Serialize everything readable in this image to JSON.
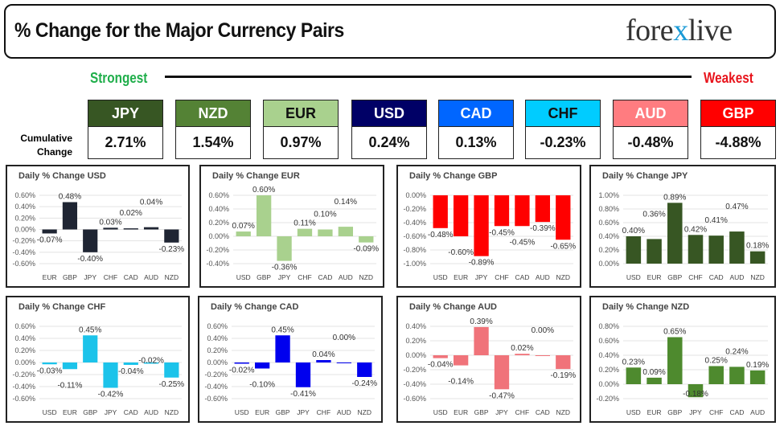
{
  "header": {
    "title": "% Change for the Major Currency Pairs",
    "logo_text": "forexlive"
  },
  "ranking": {
    "strongest_label": "Strongest",
    "weakest_label": "Weakest",
    "cumulative_label_1": "Cumulative",
    "cumulative_label_2": "Change",
    "items": [
      {
        "currency": "JPY",
        "value": "2.71%",
        "color": "#375623",
        "text_color": "#ffffff"
      },
      {
        "currency": "NZD",
        "value": "1.54%",
        "color": "#548235",
        "text_color": "#ffffff"
      },
      {
        "currency": "EUR",
        "value": "0.97%",
        "color": "#a9d18e",
        "text_color": "#111111"
      },
      {
        "currency": "USD",
        "value": "0.24%",
        "color": "#000066",
        "text_color": "#ffffff"
      },
      {
        "currency": "CAD",
        "value": "0.13%",
        "color": "#0066ff",
        "text_color": "#ffffff"
      },
      {
        "currency": "CHF",
        "value": "-0.23%",
        "color": "#00ccff",
        "text_color": "#111111"
      },
      {
        "currency": "AUD",
        "value": "-0.48%",
        "color": "#ff7c80",
        "text_color": "#ffffff"
      },
      {
        "currency": "GBP",
        "value": "-4.88%",
        "color": "#ff0000",
        "text_color": "#ffffff"
      }
    ]
  },
  "chart_data": [
    {
      "type": "bar",
      "title": "Daily % Change USD",
      "categories": [
        "EUR",
        "GBP",
        "JPY",
        "CHF",
        "CAD",
        "AUD",
        "NZD"
      ],
      "values": [
        -0.07,
        0.48,
        -0.4,
        0.03,
        0.02,
        0.04,
        -0.23
      ],
      "ylim": [
        -0.6,
        0.6
      ],
      "ystep": 0.2,
      "color": "#1f2533",
      "grid": true
    },
    {
      "type": "bar",
      "title": "Daily % Change EUR",
      "categories": [
        "USD",
        "GBP",
        "JPY",
        "CHF",
        "CAD",
        "AUD",
        "NZD"
      ],
      "values": [
        0.07,
        0.6,
        -0.36,
        0.11,
        0.1,
        0.14,
        -0.09
      ],
      "ylim": [
        -0.4,
        0.6
      ],
      "ystep": 0.2,
      "color": "#a9d18e",
      "grid": true
    },
    {
      "type": "bar",
      "title": "Daily % Change GBP",
      "categories": [
        "USD",
        "EUR",
        "JPY",
        "CHF",
        "CAD",
        "AUD",
        "NZD"
      ],
      "values": [
        -0.48,
        -0.6,
        -0.89,
        -0.45,
        -0.45,
        -0.39,
        -0.65
      ],
      "ylim": [
        -1.0,
        0.0
      ],
      "ystep": 0.2,
      "color": "#ff0000",
      "grid": true
    },
    {
      "type": "bar",
      "title": "Daily % Change JPY",
      "categories": [
        "USD",
        "EUR",
        "GBP",
        "CHF",
        "CAD",
        "AUD",
        "NZD"
      ],
      "values": [
        0.4,
        0.36,
        0.89,
        0.42,
        0.41,
        0.47,
        0.18
      ],
      "ylim": [
        0.0,
        1.0
      ],
      "ystep": 0.2,
      "color": "#375623",
      "grid": true
    },
    {
      "type": "bar",
      "title": "Daily % Change CHF",
      "categories": [
        "USD",
        "EUR",
        "GBP",
        "JPY",
        "CAD",
        "AUD",
        "NZD"
      ],
      "values": [
        -0.03,
        -0.11,
        0.45,
        -0.42,
        -0.04,
        -0.02,
        -0.25
      ],
      "ylim": [
        -0.6,
        0.6
      ],
      "ystep": 0.2,
      "color": "#1cc3ea",
      "grid": true
    },
    {
      "type": "bar",
      "title": "Daily % Change CAD",
      "categories": [
        "USD",
        "EUR",
        "GBP",
        "JPY",
        "CHF",
        "AUD",
        "NZD"
      ],
      "values": [
        -0.02,
        -0.1,
        0.45,
        -0.41,
        0.04,
        0.0,
        -0.24
      ],
      "ylim": [
        -0.6,
        0.6
      ],
      "ystep": 0.2,
      "color": "#0000ee",
      "grid": true
    },
    {
      "type": "bar",
      "title": "Daily % Change AUD",
      "categories": [
        "USD",
        "EUR",
        "GBP",
        "JPY",
        "CHF",
        "CAD",
        "NZD"
      ],
      "values": [
        -0.04,
        -0.14,
        0.39,
        -0.47,
        0.02,
        0.0,
        -0.19
      ],
      "ylim": [
        -0.6,
        0.4
      ],
      "ystep": 0.2,
      "color": "#f0737a",
      "grid": true
    },
    {
      "type": "bar",
      "title": "Daily % Change NZD",
      "categories": [
        "USD",
        "EUR",
        "GBP",
        "JPY",
        "CHF",
        "CAD",
        "AUD"
      ],
      "values": [
        0.23,
        0.09,
        0.65,
        -0.18,
        0.25,
        0.24,
        0.19
      ],
      "ylim": [
        -0.2,
        0.8
      ],
      "ystep": 0.2,
      "color": "#4e8a2e",
      "grid": true
    }
  ]
}
